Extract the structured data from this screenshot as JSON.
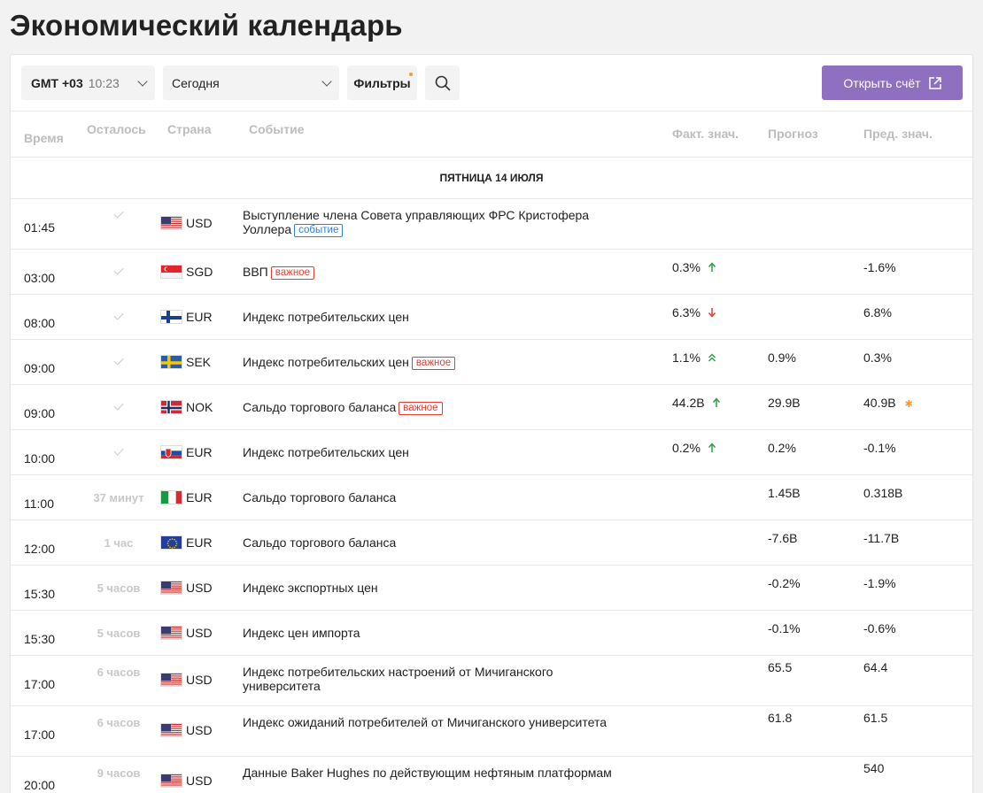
{
  "page_title": "Экономический календарь",
  "toolbar": {
    "tz_label": "GMT +03",
    "tz_time": "10:23",
    "date_label": "Сегодня",
    "filters_label": "Фильтры",
    "open_account_label": "Открыть счёт"
  },
  "columns": {
    "time": "Время",
    "left": "Осталось",
    "country": "Страна",
    "event": "Событие",
    "actual": "Факт. знач.",
    "forecast": "Прогноз",
    "prev": "Пред. знач."
  },
  "day_label": "ПЯТНИЦА 14 ИЮЛЯ",
  "colors": {
    "accent": "#8f6fc0",
    "up": "#2ea043",
    "down": "#e53d2f",
    "important": "#e53d2f",
    "event": "#2d83d6"
  },
  "rows": [
    {
      "time": "01:45",
      "left": "",
      "done": true,
      "flag": "us",
      "currency": "USD",
      "event": "Выступление члена Совета управляющих ФРС Кристофера Уоллера",
      "badge": "событие",
      "badge_type": "ev",
      "actual": "",
      "trend": "",
      "forecast": "",
      "prev": "",
      "star": false
    },
    {
      "time": "03:00",
      "left": "",
      "done": true,
      "flag": "sg",
      "currency": "SGD",
      "event": "ВВП",
      "badge": "важное",
      "badge_type": "imp",
      "actual": "0.3%",
      "trend": "up",
      "forecast": "",
      "prev": "-1.6%",
      "star": false
    },
    {
      "time": "08:00",
      "left": "",
      "done": true,
      "flag": "fi",
      "currency": "EUR",
      "event": "Индекс потребительских цен",
      "badge": "",
      "badge_type": "",
      "actual": "6.3%",
      "trend": "down",
      "forecast": "",
      "prev": "6.8%",
      "star": false
    },
    {
      "time": "09:00",
      "left": "",
      "done": true,
      "flag": "se",
      "currency": "SEK",
      "event": "Индекс потребительских цен",
      "badge": "важное",
      "badge_type": "imp",
      "actual": "1.1%",
      "trend": "up2",
      "forecast": "0.9%",
      "prev": "0.3%",
      "star": false
    },
    {
      "time": "09:00",
      "left": "",
      "done": true,
      "flag": "no",
      "currency": "NOK",
      "event": "Сальдо торгового баланса",
      "badge": "важное",
      "badge_type": "imp",
      "actual": "44.2B",
      "trend": "up",
      "forecast": "29.9B",
      "prev": "40.9B",
      "star": true
    },
    {
      "time": "10:00",
      "left": "",
      "done": true,
      "flag": "sk",
      "currency": "EUR",
      "event": "Индекс потребительских цен",
      "badge": "",
      "badge_type": "",
      "actual": "0.2%",
      "trend": "up",
      "forecast": "0.2%",
      "prev": "-0.1%",
      "star": false
    },
    {
      "time": "11:00",
      "left": "37 минут",
      "done": false,
      "flag": "it",
      "currency": "EUR",
      "event": "Сальдо торгового баланса",
      "badge": "",
      "badge_type": "",
      "actual": "",
      "trend": "",
      "forecast": "1.45B",
      "prev": "0.318B",
      "star": false
    },
    {
      "time": "12:00",
      "left": "1 час",
      "done": false,
      "flag": "eu",
      "currency": "EUR",
      "event": "Сальдо торгового баланса",
      "badge": "",
      "badge_type": "",
      "actual": "",
      "trend": "",
      "forecast": "-7.6B",
      "prev": "-11.7B",
      "star": false
    },
    {
      "time": "15:30",
      "left": "5 часов",
      "done": false,
      "flag": "us",
      "currency": "USD",
      "event": "Индекс экспортных цен",
      "badge": "",
      "badge_type": "",
      "actual": "",
      "trend": "",
      "forecast": "-0.2%",
      "prev": "-1.9%",
      "star": false
    },
    {
      "time": "15:30",
      "left": "5 часов",
      "done": false,
      "flag": "us",
      "currency": "USD",
      "event": "Индекс цен импорта",
      "badge": "",
      "badge_type": "",
      "actual": "",
      "trend": "",
      "forecast": "-0.1%",
      "prev": "-0.6%",
      "star": false
    },
    {
      "time": "17:00",
      "left": "6 часов",
      "done": false,
      "flag": "us",
      "currency": "USD",
      "event": "Индекс потребительских настроений от Мичиганского университета",
      "badge": "",
      "badge_type": "",
      "actual": "",
      "trend": "",
      "forecast": "65.5",
      "prev": "64.4",
      "star": false
    },
    {
      "time": "17:00",
      "left": "6 часов",
      "done": false,
      "flag": "us",
      "currency": "USD",
      "event": "Индекс ожиданий потребителей от Мичиганского университета",
      "badge": "",
      "badge_type": "",
      "actual": "",
      "trend": "",
      "forecast": "61.8",
      "prev": "61.5",
      "star": false
    },
    {
      "time": "20:00",
      "left": "9 часов",
      "done": false,
      "flag": "us",
      "currency": "USD",
      "event": "Данные Baker Hughes по действующим нефтяным платформам",
      "badge": "",
      "badge_type": "",
      "actual": "",
      "trend": "",
      "forecast": "",
      "prev": "540",
      "star": false
    }
  ]
}
